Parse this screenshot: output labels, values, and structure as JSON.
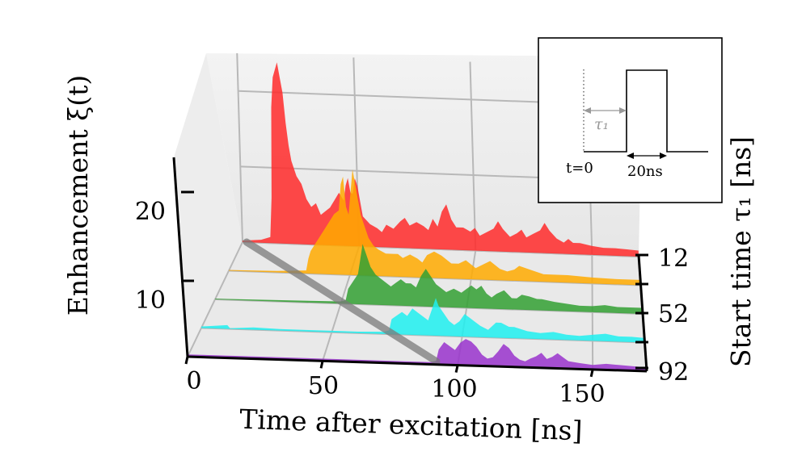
{
  "chart_data": {
    "type": "area",
    "title": "",
    "xlabel": "Time after excitation [ns]",
    "ylabel": "Enhancement ξ(t)",
    "zlabel": "Start time τ₁ [ns]",
    "xlim": [
      0,
      170
    ],
    "ylim": [
      0,
      25
    ],
    "x_ticks": [
      "0",
      "50",
      "100",
      "150"
    ],
    "y_ticks": [
      "10",
      "20"
    ],
    "start_time_ticks": [
      "12",
      "52",
      "92"
    ],
    "series": [
      {
        "name": "τ₁ = 12 ns",
        "start": 12,
        "color": "#ff2a2a",
        "points": [
          [
            0,
            0.2
          ],
          [
            8,
            0.4
          ],
          [
            12,
            0.8
          ],
          [
            13,
            6
          ],
          [
            14,
            18
          ],
          [
            15,
            22
          ],
          [
            16,
            23
          ],
          [
            17,
            24
          ],
          [
            18,
            22
          ],
          [
            19,
            20
          ],
          [
            20,
            16
          ],
          [
            21,
            13
          ],
          [
            22,
            11
          ],
          [
            24,
            9
          ],
          [
            26,
            8
          ],
          [
            28,
            6
          ],
          [
            30,
            5
          ],
          [
            32,
            5.5
          ],
          [
            34,
            4
          ],
          [
            36,
            4.5
          ],
          [
            38,
            5
          ],
          [
            40,
            6
          ],
          [
            42,
            7
          ],
          [
            44,
            6
          ],
          [
            45,
            8
          ],
          [
            46,
            9
          ],
          [
            47,
            7
          ],
          [
            48,
            7
          ],
          [
            49,
            9
          ],
          [
            50,
            8
          ],
          [
            52,
            4
          ],
          [
            55,
            3
          ],
          [
            58,
            2.5
          ],
          [
            60,
            2
          ],
          [
            62,
            3
          ],
          [
            65,
            2.5
          ],
          [
            68,
            3.5
          ],
          [
            70,
            4
          ],
          [
            72,
            3
          ],
          [
            75,
            3.5
          ],
          [
            78,
            3
          ],
          [
            80,
            2.5
          ],
          [
            82,
            4
          ],
          [
            84,
            3
          ],
          [
            86,
            5
          ],
          [
            88,
            6
          ],
          [
            90,
            4
          ],
          [
            92,
            3
          ],
          [
            95,
            3
          ],
          [
            98,
            2.5
          ],
          [
            100,
            3
          ],
          [
            102,
            2
          ],
          [
            105,
            2.5
          ],
          [
            108,
            3
          ],
          [
            110,
            4
          ],
          [
            112,
            3
          ],
          [
            115,
            2
          ],
          [
            118,
            2.5
          ],
          [
            120,
            3
          ],
          [
            122,
            2
          ],
          [
            125,
            2.5
          ],
          [
            128,
            3
          ],
          [
            130,
            4
          ],
          [
            132,
            3
          ],
          [
            135,
            2
          ],
          [
            138,
            1.5
          ],
          [
            140,
            2
          ],
          [
            142,
            1.5
          ],
          [
            145,
            1.5
          ],
          [
            150,
            1.2
          ],
          [
            155,
            1
          ],
          [
            160,
            1
          ],
          [
            165,
            0.9
          ],
          [
            170,
            0.8
          ]
        ]
      },
      {
        "name": "τ₁ = 32 ns",
        "start": 32,
        "color": "#ffaa00",
        "points": [
          [
            0,
            0.1
          ],
          [
            20,
            0.2
          ],
          [
            32,
            0.4
          ],
          [
            33,
            2
          ],
          [
            34,
            3
          ],
          [
            36,
            4
          ],
          [
            38,
            5
          ],
          [
            40,
            6
          ],
          [
            42,
            7
          ],
          [
            44,
            8
          ],
          [
            46,
            8.5
          ],
          [
            47,
            12
          ],
          [
            48,
            13
          ],
          [
            49,
            9
          ],
          [
            50,
            8
          ],
          [
            51,
            11
          ],
          [
            52,
            14
          ],
          [
            53,
            12
          ],
          [
            54,
            10
          ],
          [
            55,
            8
          ],
          [
            56,
            7
          ],
          [
            58,
            5
          ],
          [
            60,
            4
          ],
          [
            62,
            3.5
          ],
          [
            65,
            3
          ],
          [
            68,
            3
          ],
          [
            70,
            3
          ],
          [
            72,
            2.5
          ],
          [
            75,
            3
          ],
          [
            78,
            2.5
          ],
          [
            80,
            2
          ],
          [
            82,
            3
          ],
          [
            85,
            3.5
          ],
          [
            88,
            3
          ],
          [
            90,
            2.5
          ],
          [
            92,
            2
          ],
          [
            95,
            2
          ],
          [
            98,
            2.5
          ],
          [
            100,
            2
          ],
          [
            102,
            1.5
          ],
          [
            105,
            2
          ],
          [
            108,
            2.5
          ],
          [
            110,
            2
          ],
          [
            112,
            1.5
          ],
          [
            115,
            1.2
          ],
          [
            118,
            1.5
          ],
          [
            120,
            2
          ],
          [
            125,
            1.5
          ],
          [
            130,
            1
          ],
          [
            140,
            1
          ],
          [
            150,
            0.8
          ],
          [
            160,
            0.7
          ],
          [
            170,
            0.7
          ]
        ]
      },
      {
        "name": "τ₁ = 52 ns",
        "start": 52,
        "color": "#33a033",
        "points": [
          [
            0,
            0.1
          ],
          [
            30,
            0.2
          ],
          [
            50,
            0.3
          ],
          [
            52,
            0.5
          ],
          [
            53,
            2
          ],
          [
            55,
            3
          ],
          [
            57,
            4
          ],
          [
            58,
            6
          ],
          [
            59,
            8
          ],
          [
            60,
            7
          ],
          [
            62,
            5
          ],
          [
            64,
            4
          ],
          [
            66,
            3.5
          ],
          [
            68,
            3
          ],
          [
            70,
            2.5
          ],
          [
            72,
            3
          ],
          [
            74,
            3.5
          ],
          [
            76,
            3
          ],
          [
            78,
            3
          ],
          [
            80,
            2.5
          ],
          [
            82,
            4
          ],
          [
            84,
            5
          ],
          [
            86,
            4
          ],
          [
            88,
            3
          ],
          [
            90,
            2.5
          ],
          [
            92,
            2
          ],
          [
            95,
            2.5
          ],
          [
            98,
            2
          ],
          [
            100,
            2.5
          ],
          [
            102,
            3
          ],
          [
            104,
            2.5
          ],
          [
            106,
            3
          ],
          [
            108,
            2
          ],
          [
            110,
            1.5
          ],
          [
            112,
            2
          ],
          [
            115,
            2.5
          ],
          [
            118,
            1.5
          ],
          [
            120,
            1.5
          ],
          [
            122,
            2
          ],
          [
            125,
            1.8
          ],
          [
            128,
            1.5
          ],
          [
            130,
            1.5
          ],
          [
            135,
            1.2
          ],
          [
            140,
            1
          ],
          [
            145,
            0.8
          ],
          [
            150,
            0.8
          ],
          [
            155,
            1
          ],
          [
            160,
            0.8
          ],
          [
            165,
            0.8
          ],
          [
            170,
            0.8
          ]
        ]
      },
      {
        "name": "τ₁ = 72 ns",
        "start": 72,
        "color": "#1ff0f0",
        "points": [
          [
            0,
            0.2
          ],
          [
            10,
            0.5
          ],
          [
            11,
            0.1
          ],
          [
            20,
            0.3
          ],
          [
            30,
            0.2
          ],
          [
            40,
            0.2
          ],
          [
            50,
            0.2
          ],
          [
            60,
            0.2
          ],
          [
            70,
            0.3
          ],
          [
            72,
            0.5
          ],
          [
            73,
            2
          ],
          [
            75,
            2.5
          ],
          [
            77,
            3
          ],
          [
            79,
            2.5
          ],
          [
            81,
            3.5
          ],
          [
            83,
            3
          ],
          [
            85,
            2.5
          ],
          [
            87,
            2
          ],
          [
            89,
            4
          ],
          [
            90,
            5
          ],
          [
            91,
            4
          ],
          [
            93,
            3
          ],
          [
            95,
            2
          ],
          [
            97,
            1.5
          ],
          [
            99,
            2
          ],
          [
            101,
            3
          ],
          [
            103,
            2.5
          ],
          [
            105,
            2
          ],
          [
            107,
            1.5
          ],
          [
            110,
            1
          ],
          [
            113,
            2
          ],
          [
            115,
            2
          ],
          [
            118,
            1.5
          ],
          [
            120,
            1.5
          ],
          [
            125,
            1
          ],
          [
            130,
            0.8
          ],
          [
            135,
            1
          ],
          [
            140,
            0.7
          ],
          [
            145,
            0.6
          ],
          [
            150,
            0.8
          ],
          [
            155,
            1
          ],
          [
            160,
            0.7
          ],
          [
            165,
            0.7
          ],
          [
            170,
            0.6
          ]
        ]
      },
      {
        "name": "τ₁ = 92 ns",
        "start": 92,
        "color": "#9933cc",
        "points": [
          [
            0,
            0.3
          ],
          [
            20,
            0.3
          ],
          [
            40,
            0.3
          ],
          [
            60,
            0.3
          ],
          [
            80,
            0.3
          ],
          [
            90,
            0.3
          ],
          [
            92,
            0.5
          ],
          [
            93,
            2
          ],
          [
            95,
            3
          ],
          [
            97,
            2.5
          ],
          [
            99,
            2
          ],
          [
            101,
            3
          ],
          [
            103,
            3.5
          ],
          [
            105,
            3.2
          ],
          [
            107,
            2.5
          ],
          [
            109,
            1.5
          ],
          [
            111,
            1
          ],
          [
            113,
            1.2
          ],
          [
            115,
            2
          ],
          [
            117,
            3
          ],
          [
            119,
            2.5
          ],
          [
            121,
            1.5
          ],
          [
            123,
            1
          ],
          [
            125,
            0.8
          ],
          [
            127,
            1.2
          ],
          [
            129,
            1.5
          ],
          [
            131,
            2
          ],
          [
            133,
            1.2
          ],
          [
            135,
            1.5
          ],
          [
            137,
            2
          ],
          [
            139,
            1.5
          ],
          [
            141,
            1
          ],
          [
            145,
            0.8
          ],
          [
            150,
            0.6
          ],
          [
            155,
            0.8
          ],
          [
            160,
            0.7
          ],
          [
            165,
            0.6
          ],
          [
            170,
            0.5
          ]
        ]
      }
    ],
    "inset": {
      "type": "pulse-schematic",
      "labels": {
        "start": "t=0",
        "delay": "τ₁",
        "width": "20ns"
      }
    }
  }
}
